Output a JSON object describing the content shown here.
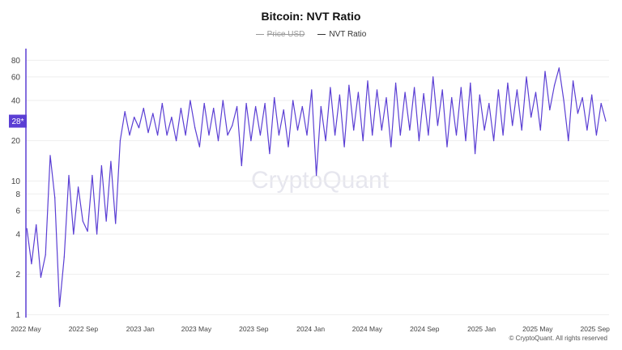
{
  "chart_data": {
    "type": "line",
    "title": "Bitcoin: NVT Ratio",
    "legend": [
      {
        "name": "Price USD",
        "color": "#9a9a9a",
        "hidden": true
      },
      {
        "name": "NVT Ratio",
        "color": "#5b3fd4",
        "hidden": false
      }
    ],
    "legend_position": "top-center",
    "y_scale": "log",
    "ylim": [
      0.95,
      95
    ],
    "y_ticks": [
      1,
      2,
      4,
      6,
      8,
      10,
      20,
      40,
      60,
      80
    ],
    "xlim": [
      "2022-05-01",
      "2025-10-01"
    ],
    "x_ticks": [
      {
        "date": "2022-05-01",
        "label": "2022 May"
      },
      {
        "date": "2022-09-01",
        "label": "2022 Sep"
      },
      {
        "date": "2023-01-01",
        "label": "2023 Jan"
      },
      {
        "date": "2023-05-01",
        "label": "2023 May"
      },
      {
        "date": "2023-09-01",
        "label": "2023 Sep"
      },
      {
        "date": "2024-01-01",
        "label": "2024 Jan"
      },
      {
        "date": "2024-05-01",
        "label": "2024 May"
      },
      {
        "date": "2024-09-01",
        "label": "2024 Sep"
      },
      {
        "date": "2025-01-01",
        "label": "2025 Jan"
      },
      {
        "date": "2025-05-01",
        "label": "2025 May"
      },
      {
        "date": "2025-09-01",
        "label": "2025 Sep"
      }
    ],
    "grid": true,
    "current_value_label": "28*",
    "accent_color": "#5b3fd4",
    "watermark": "CryptoQuant",
    "series": [
      {
        "name": "NVT Ratio",
        "color": "#5b3fd4",
        "x": [
          "2022-05-03",
          "2022-05-13",
          "2022-05-23",
          "2022-06-02",
          "2022-06-12",
          "2022-06-22",
          "2022-07-02",
          "2022-07-12",
          "2022-07-22",
          "2022-08-01",
          "2022-08-11",
          "2022-08-21",
          "2022-08-31",
          "2022-09-10",
          "2022-09-20",
          "2022-09-30",
          "2022-10-10",
          "2022-10-20",
          "2022-10-30",
          "2022-11-09",
          "2022-11-19",
          "2022-11-29",
          "2022-12-09",
          "2022-12-19",
          "2022-12-29",
          "2023-01-08",
          "2023-01-18",
          "2023-01-28",
          "2023-02-07",
          "2023-02-17",
          "2023-02-27",
          "2023-03-09",
          "2023-03-19",
          "2023-03-29",
          "2023-04-08",
          "2023-04-18",
          "2023-04-28",
          "2023-05-08",
          "2023-05-18",
          "2023-05-28",
          "2023-06-07",
          "2023-06-17",
          "2023-06-27",
          "2023-07-07",
          "2023-07-17",
          "2023-07-27",
          "2023-08-06",
          "2023-08-16",
          "2023-08-26",
          "2023-09-05",
          "2023-09-15",
          "2023-09-25",
          "2023-10-05",
          "2023-10-15",
          "2023-10-25",
          "2023-11-04",
          "2023-11-14",
          "2023-11-24",
          "2023-12-04",
          "2023-12-14",
          "2023-12-24",
          "2024-01-03",
          "2024-01-13",
          "2024-01-23",
          "2024-02-02",
          "2024-02-12",
          "2024-02-22",
          "2024-03-03",
          "2024-03-13",
          "2024-03-23",
          "2024-04-02",
          "2024-04-12",
          "2024-04-22",
          "2024-05-02",
          "2024-05-12",
          "2024-05-22",
          "2024-06-01",
          "2024-06-11",
          "2024-06-21",
          "2024-07-01",
          "2024-07-11",
          "2024-07-21",
          "2024-07-31",
          "2024-08-10",
          "2024-08-20",
          "2024-08-30",
          "2024-09-09",
          "2024-09-19",
          "2024-09-29",
          "2024-10-09",
          "2024-10-19",
          "2024-10-29",
          "2024-11-08",
          "2024-11-18",
          "2024-11-28",
          "2024-12-08",
          "2024-12-18",
          "2024-12-28",
          "2025-01-07",
          "2025-01-17",
          "2025-01-27",
          "2025-02-06",
          "2025-02-16",
          "2025-02-26",
          "2025-03-08",
          "2025-03-18",
          "2025-03-28",
          "2025-04-07",
          "2025-04-17",
          "2025-04-27",
          "2025-05-07",
          "2025-05-17",
          "2025-05-27",
          "2025-06-06",
          "2025-06-16",
          "2025-06-26",
          "2025-07-06",
          "2025-07-16",
          "2025-07-26",
          "2025-08-05",
          "2025-08-15",
          "2025-08-25",
          "2025-09-04",
          "2025-09-14",
          "2025-09-24"
        ],
        "y": [
          4.4,
          2.4,
          4.7,
          1.9,
          2.8,
          15.5,
          7.5,
          1.15,
          2.7,
          11,
          4,
          9,
          5,
          4.2,
          11,
          4,
          13,
          5,
          14,
          4.8,
          20,
          33,
          22,
          30,
          25,
          35,
          23,
          32,
          22,
          38,
          22,
          30,
          20,
          35,
          22,
          40,
          25,
          18,
          38,
          22,
          35,
          20,
          40,
          22,
          26,
          36,
          13,
          38,
          20,
          36,
          22,
          38,
          16,
          42,
          22,
          34,
          18,
          40,
          24,
          36,
          22,
          48,
          11,
          36,
          20,
          50,
          22,
          44,
          18,
          52,
          24,
          46,
          20,
          56,
          22,
          48,
          24,
          42,
          18,
          54,
          22,
          46,
          24,
          50,
          20,
          45,
          22,
          60,
          26,
          48,
          18,
          42,
          22,
          50,
          20,
          54,
          16,
          44,
          24,
          38,
          20,
          48,
          22,
          54,
          26,
          48,
          24,
          60,
          30,
          46,
          24,
          66,
          34,
          52,
          70,
          40,
          20,
          56,
          32,
          42,
          24,
          44,
          22,
          38,
          28
        ]
      }
    ]
  }
}
